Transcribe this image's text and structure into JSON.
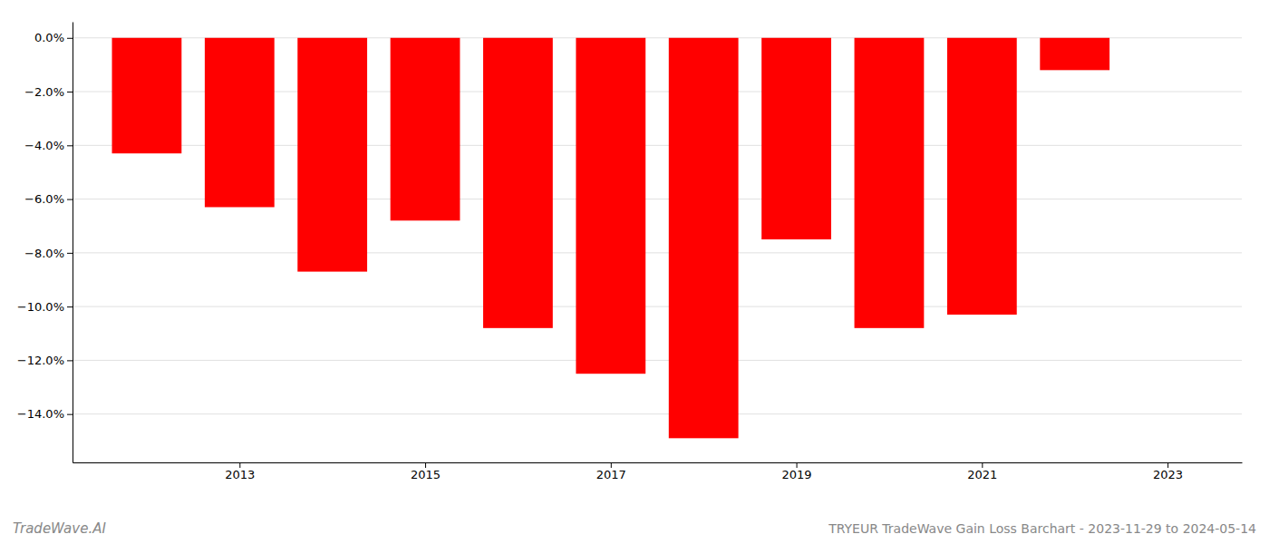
{
  "chart_data": {
    "type": "bar",
    "title": "TRYEUR TradeWave Gain Loss Barchart - 2023-11-29 to 2024-05-14",
    "annotations": [
      {
        "text": "TradeWave.AI"
      }
    ],
    "x": [
      2012,
      2013,
      2014,
      2015,
      2016,
      2017,
      2018,
      2019,
      2020,
      2021,
      2022,
      2023
    ],
    "values": [
      -0.043,
      -0.063,
      -0.087,
      -0.068,
      -0.108,
      -0.125,
      -0.149,
      -0.075,
      -0.108,
      -0.103,
      -0.012,
      -0.0
    ],
    "color": "#ff0000",
    "xlim": [
      2011.2,
      2023.8
    ],
    "xticks": [
      2013,
      2015,
      2017,
      2019,
      2021,
      2023
    ],
    "ylim": [
      -0.158,
      0.006
    ],
    "yticks": [
      {
        "value": 0.0,
        "label": "0.0%"
      },
      {
        "value": -0.02,
        "label": "−2.0%"
      },
      {
        "value": -0.04,
        "label": "−4.0%"
      },
      {
        "value": -0.06,
        "label": "−6.0%"
      },
      {
        "value": -0.08,
        "label": "−8.0%"
      },
      {
        "value": -0.1,
        "label": "−10.0%"
      },
      {
        "value": -0.12,
        "label": "−12.0%"
      },
      {
        "value": -0.14,
        "label": "−14.0%"
      }
    ],
    "grid": true
  }
}
